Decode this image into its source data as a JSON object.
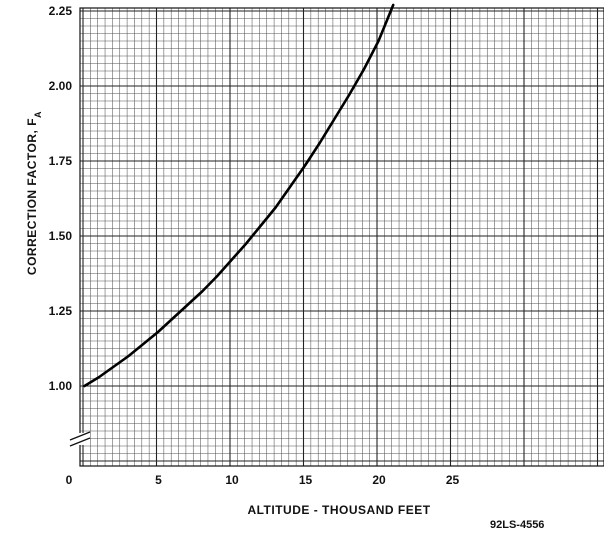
{
  "chart_data": {
    "type": "line",
    "title": "",
    "xlabel": "ALTITUDE  - THOUSAND FEET",
    "ylabel": "CORRECTION FACTOR, FA",
    "ylabel_main": "CORRECTION FACTOR, F",
    "ylabel_subscript": "A",
    "xlim": [
      0,
      36
    ],
    "ylim": [
      0.75,
      2.27
    ],
    "x_ticks": [
      0,
      5,
      10,
      15,
      20,
      25
    ],
    "x_tick_labels": [
      "0",
      "5",
      "10",
      "15",
      "20",
      "25"
    ],
    "y_ticks": [
      1.0,
      1.25,
      1.5,
      1.75,
      2.0,
      2.25
    ],
    "y_tick_labels": [
      "1.00",
      "1.25",
      "1.50",
      "1.75",
      "2.00",
      "2.25"
    ],
    "grid": true,
    "axis_break": "y",
    "series": [
      {
        "x": [
          0,
          1,
          2,
          3,
          4,
          5,
          6,
          7,
          8,
          9,
          10,
          11,
          12,
          13,
          14,
          15,
          16,
          17,
          18,
          19,
          20,
          21
        ],
        "values": [
          1.0,
          1.03,
          1.065,
          1.1,
          1.14,
          1.18,
          1.225,
          1.27,
          1.315,
          1.365,
          1.42,
          1.475,
          1.535,
          1.595,
          1.665,
          1.735,
          1.81,
          1.89,
          1.97,
          2.055,
          2.15,
          2.27
        ]
      }
    ]
  },
  "figure_ref": "92LS-4556"
}
